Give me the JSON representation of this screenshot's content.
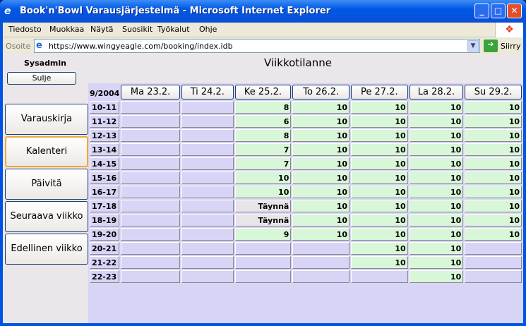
{
  "window": {
    "title": "Book'n'Bowl Varausjärjestelmä - Microsoft Internet Explorer"
  },
  "menu": [
    "Tiedosto",
    "Muokkaa",
    "Näytä",
    "Suosikit",
    "Työkalut",
    "Ohje"
  ],
  "address": {
    "label": "Osoite",
    "url": "https://www.wingyeagle.com/booking/index.idb",
    "go": "Siirry"
  },
  "sidebar": {
    "user": "Sysadmin",
    "close": "Sulje",
    "buttons": [
      "Varauskirja",
      "Kalenteri",
      "Päivitä",
      "Seuraava viikko",
      "Edellinen viikko"
    ],
    "selected": "Kalenteri"
  },
  "main": {
    "title": "Viikkotilanne",
    "week": "9/2004",
    "days": [
      "Ma 23.2.",
      "Ti 24.2.",
      "Ke 25.2.",
      "To 26.2.",
      "Pe 27.2.",
      "La 28.2.",
      "Su 29.2."
    ],
    "rows": [
      {
        "time": "10-11",
        "cells": [
          "",
          "",
          "8",
          "10",
          "10",
          "10",
          "10"
        ]
      },
      {
        "time": "11-12",
        "cells": [
          "",
          "",
          "6",
          "10",
          "10",
          "10",
          "10"
        ]
      },
      {
        "time": "12-13",
        "cells": [
          "",
          "",
          "8",
          "10",
          "10",
          "10",
          "10"
        ]
      },
      {
        "time": "13-14",
        "cells": [
          "",
          "",
          "7",
          "10",
          "10",
          "10",
          "10"
        ]
      },
      {
        "time": "14-15",
        "cells": [
          "",
          "",
          "7",
          "10",
          "10",
          "10",
          "10"
        ]
      },
      {
        "time": "15-16",
        "cells": [
          "",
          "",
          "10",
          "10",
          "10",
          "10",
          "10"
        ]
      },
      {
        "time": "16-17",
        "cells": [
          "",
          "",
          "10",
          "10",
          "10",
          "10",
          "10"
        ]
      },
      {
        "time": "17-18",
        "cells": [
          "",
          "",
          "Täynnä",
          "10",
          "10",
          "10",
          "10"
        ]
      },
      {
        "time": "18-19",
        "cells": [
          "",
          "",
          "Täynnä",
          "10",
          "10",
          "10",
          "10"
        ]
      },
      {
        "time": "19-20",
        "cells": [
          "",
          "",
          "9",
          "10",
          "10",
          "10",
          "10"
        ]
      },
      {
        "time": "20-21",
        "cells": [
          "",
          "",
          "",
          "",
          "10",
          "10",
          ""
        ]
      },
      {
        "time": "21-22",
        "cells": [
          "",
          "",
          "",
          "",
          "10",
          "10",
          ""
        ]
      },
      {
        "time": "22-23",
        "cells": [
          "",
          "",
          "",
          "",
          "",
          "10",
          ""
        ]
      }
    ]
  },
  "colors": {
    "empty": "#d8d4f6",
    "available": "#d8f6d8",
    "full": "#e8e4e8"
  }
}
